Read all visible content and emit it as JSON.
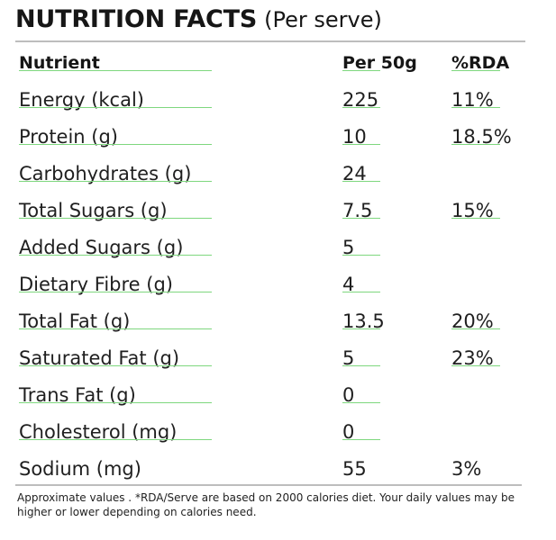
{
  "title": {
    "main": "NUTRITION FACTS",
    "sub": "(Per serve)"
  },
  "table": {
    "headers": {
      "nutrient": "Nutrient",
      "per50": "Per 50g",
      "rda": "%RDA"
    },
    "rows": [
      {
        "nutrient": "Energy (kcal)",
        "per50": "225",
        "rda": "11%"
      },
      {
        "nutrient": "Protein (g)",
        "per50": "10",
        "rda": "18.5%"
      },
      {
        "nutrient": "Carbohydrates (g)",
        "per50": "24",
        "rda": ""
      },
      {
        "nutrient": "Total Sugars (g)",
        "per50": "7.5",
        "rda": "15%"
      },
      {
        "nutrient": "Added Sugars (g)",
        "per50": "5",
        "rda": ""
      },
      {
        "nutrient": "Dietary Fibre (g)",
        "per50": "4",
        "rda": ""
      },
      {
        "nutrient": "Total Fat (g)",
        "per50": "13.5",
        "rda": "20%"
      },
      {
        "nutrient": "Saturated Fat (g)",
        "per50": "5",
        "rda": "23%"
      },
      {
        "nutrient": "Trans Fat (g)",
        "per50": "0",
        "rda": ""
      },
      {
        "nutrient": "Cholesterol (mg)",
        "per50": "0",
        "rda": ""
      },
      {
        "nutrient": "Sodium (mg)",
        "per50": "55",
        "rda": "3%"
      }
    ]
  },
  "footnote": "Approximate values . *RDA/Serve are based on 2000 calories diet. Your daily values may be higher or lower depending on calories need.",
  "colors": {
    "rule": "#bdbdbd",
    "underline": "#7ed77e",
    "text": "#1f1f1f"
  }
}
